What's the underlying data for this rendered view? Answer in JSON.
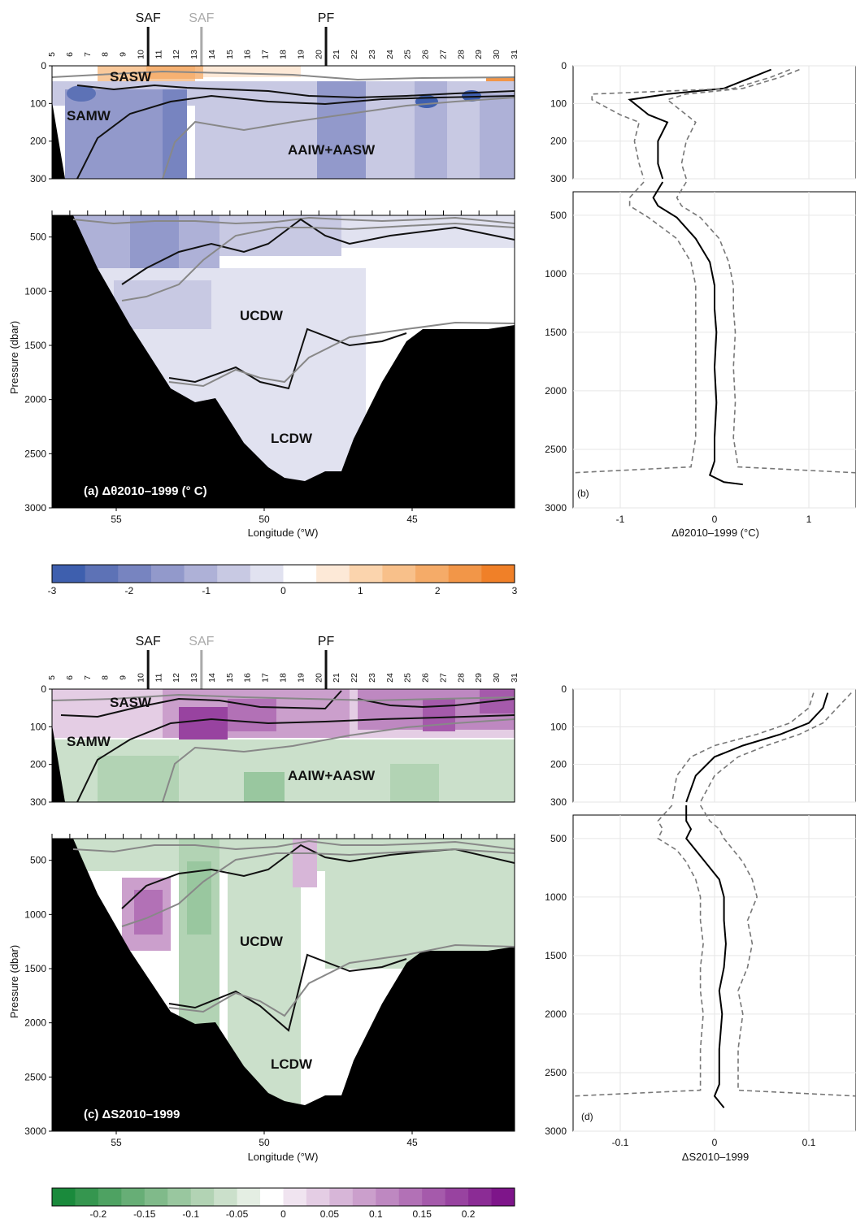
{
  "fronts": [
    {
      "label": "SAF",
      "station": 10.4,
      "color": "#111111"
    },
    {
      "label": "SAF",
      "station": 13.4,
      "color": "#aaaaaa"
    },
    {
      "label": "PF",
      "station": 20.4,
      "color": "#111111"
    }
  ],
  "stations": [
    "5",
    "6",
    "7",
    "8",
    "9",
    "10",
    "11",
    "12",
    "13",
    "14",
    "15",
    "16",
    "17",
    "18",
    "19",
    "20",
    "21",
    "22",
    "23",
    "24",
    "25",
    "26",
    "27",
    "28",
    "29",
    "30",
    "31"
  ],
  "section_xticks": [
    "55",
    "50",
    "45"
  ],
  "profile_xticks_temp": [
    "-1",
    "0",
    "1"
  ],
  "profile_xticks_sal": [
    "-0.1",
    "0",
    "0.1"
  ],
  "upper_yticks": [
    "0",
    "100",
    "200",
    "300"
  ],
  "lower_yticks": [
    "500",
    "1000",
    "1500",
    "2000",
    "2500",
    "3000"
  ],
  "xlabel_section": "Longitude (°W)",
  "ylabel_section": "Pressure (dbar)",
  "xlabel_temp_profile": "Δθ2010–1999 (°C)",
  "xlabel_sal_profile": "ΔS2010–1999",
  "panel_a_label": "(a) Δθ2010–1999 (° C)",
  "panel_b_label": "(b)",
  "panel_c_label": "(c) ΔS2010–1999",
  "panel_d_label": "(d)",
  "water_masses": {
    "sasw": "SASW",
    "samw": "SAMW",
    "aaiw": "AAIW+AASW",
    "ucdw": "UCDW",
    "lcdw": "LCDW"
  },
  "colorbar_temp": {
    "ticks": [
      "-3",
      "-2",
      "-1",
      "0",
      "1",
      "2",
      "3"
    ],
    "colors": [
      "#3e5fae",
      "#5d72b6",
      "#7784c0",
      "#9299cb",
      "#aeb1d7",
      "#c8c9e3",
      "#e1e2f0",
      "#ffffff",
      "#fde9d7",
      "#fbd4ad",
      "#f8c08a",
      "#f5ab68",
      "#f29648",
      "#f08028"
    ]
  },
  "colorbar_sal": {
    "ticks": [
      "-0.2",
      "-0.15",
      "-0.1",
      "-0.05",
      "0",
      "0.05",
      "0.1",
      "0.15",
      "0.2"
    ],
    "colors": [
      "#1a8a3c",
      "#35964f",
      "#4ea262",
      "#67ae76",
      "#80ba8a",
      "#99c79f",
      "#b2d3b4",
      "#cbe0cb",
      "#e4eee3",
      "#ffffff",
      "#f0e4f0",
      "#e4cde4",
      "#d7b6d8",
      "#cb9fcc",
      "#be88c1",
      "#b271b6",
      "#a55aab",
      "#9843a0",
      "#8b2c95",
      "#7e158a"
    ]
  },
  "chart_data": [
    {
      "type": "line",
      "panel": "b",
      "title": "",
      "xlabel": "Δθ2010–1999 (°C)",
      "ylabel": "",
      "xlim": [
        -1.5,
        1.5
      ],
      "ylim_upper": [
        0,
        300
      ],
      "ylim_lower": [
        300,
        3000
      ],
      "series": [
        {
          "style": "solid",
          "x": [
            0.6,
            0.4,
            0.1,
            -0.5,
            -0.9,
            -0.7,
            -0.5,
            -0.6,
            -0.6,
            -0.55,
            -0.65,
            -0.6,
            -0.4,
            -0.2,
            -0.05,
            0.0,
            0.0,
            0.02,
            0.0,
            0.02,
            0.0,
            0.0,
            -0.02,
            -0.05,
            0.1,
            0.3
          ],
          "y": [
            10,
            30,
            60,
            75,
            90,
            130,
            150,
            200,
            260,
            300,
            350,
            420,
            520,
            700,
            900,
            1100,
            1300,
            1500,
            1800,
            2100,
            2400,
            2600,
            2650,
            2720,
            2780,
            2800
          ]
        },
        {
          "style": "dashed",
          "x": [
            0.8,
            0.6,
            0.2,
            -1.3,
            -1.3,
            -1.0,
            -0.8,
            -0.85,
            -0.8,
            -0.75,
            -0.9,
            -0.9,
            -0.7,
            -0.4,
            -0.25,
            -0.2,
            -0.2,
            -0.2,
            -0.2,
            -0.2,
            -0.2,
            -0.25,
            -1.5
          ],
          "y": [
            10,
            30,
            60,
            75,
            90,
            130,
            150,
            200,
            260,
            300,
            350,
            420,
            520,
            700,
            900,
            1100,
            1300,
            1500,
            1800,
            2100,
            2400,
            2650,
            2700
          ]
        },
        {
          "style": "dashed",
          "x": [
            0.9,
            0.7,
            0.3,
            -0.3,
            -0.5,
            -0.3,
            -0.2,
            -0.3,
            -0.35,
            -0.3,
            -0.4,
            -0.35,
            -0.15,
            0.05,
            0.15,
            0.2,
            0.2,
            0.22,
            0.2,
            0.22,
            0.2,
            0.25,
            1.5
          ],
          "y": [
            10,
            30,
            60,
            75,
            90,
            130,
            150,
            200,
            260,
            300,
            350,
            420,
            520,
            700,
            900,
            1100,
            1300,
            1500,
            1800,
            2100,
            2400,
            2650,
            2700
          ]
        }
      ]
    },
    {
      "type": "line",
      "panel": "d",
      "title": "",
      "xlabel": "ΔS2010–1999",
      "ylabel": "",
      "xlim": [
        -0.15,
        0.15
      ],
      "ylim_upper": [
        0,
        300
      ],
      "ylim_lower": [
        300,
        3000
      ],
      "series": [
        {
          "style": "solid",
          "x": [
            0.12,
            0.115,
            0.1,
            0.07,
            0.03,
            0.0,
            -0.02,
            -0.03,
            -0.03,
            -0.025,
            -0.03,
            -0.02,
            -0.01,
            0.005,
            0.01,
            0.01,
            0.012,
            0.01,
            0.005,
            0.008,
            0.005,
            0.005,
            0.0,
            0.01
          ],
          "y": [
            10,
            50,
            90,
            120,
            150,
            180,
            230,
            300,
            350,
            420,
            500,
            600,
            700,
            850,
            1000,
            1200,
            1400,
            1600,
            1800,
            2000,
            2300,
            2600,
            2700,
            2800
          ]
        },
        {
          "style": "dashed",
          "x": [
            0.105,
            0.1,
            0.08,
            0.045,
            0.0,
            -0.025,
            -0.04,
            -0.045,
            -0.06,
            -0.055,
            -0.06,
            -0.04,
            -0.03,
            -0.02,
            -0.015,
            -0.015,
            -0.012,
            -0.015,
            -0.015,
            -0.012,
            -0.015,
            -0.015,
            -0.15
          ],
          "y": [
            10,
            50,
            90,
            120,
            150,
            180,
            230,
            300,
            350,
            420,
            500,
            600,
            700,
            850,
            1000,
            1200,
            1400,
            1600,
            1800,
            2000,
            2300,
            2650,
            2700
          ]
        },
        {
          "style": "dashed",
          "x": [
            0.145,
            0.13,
            0.115,
            0.09,
            0.055,
            0.025,
            0.0,
            -0.015,
            -0.005,
            0.005,
            0.01,
            0.02,
            0.03,
            0.04,
            0.045,
            0.035,
            0.04,
            0.035,
            0.025,
            0.03,
            0.025,
            0.025,
            0.15
          ],
          "y": [
            10,
            50,
            90,
            120,
            150,
            180,
            230,
            300,
            350,
            420,
            500,
            600,
            700,
            850,
            1000,
            1200,
            1400,
            1600,
            1800,
            2000,
            2300,
            2650,
            2700
          ]
        }
      ]
    }
  ]
}
